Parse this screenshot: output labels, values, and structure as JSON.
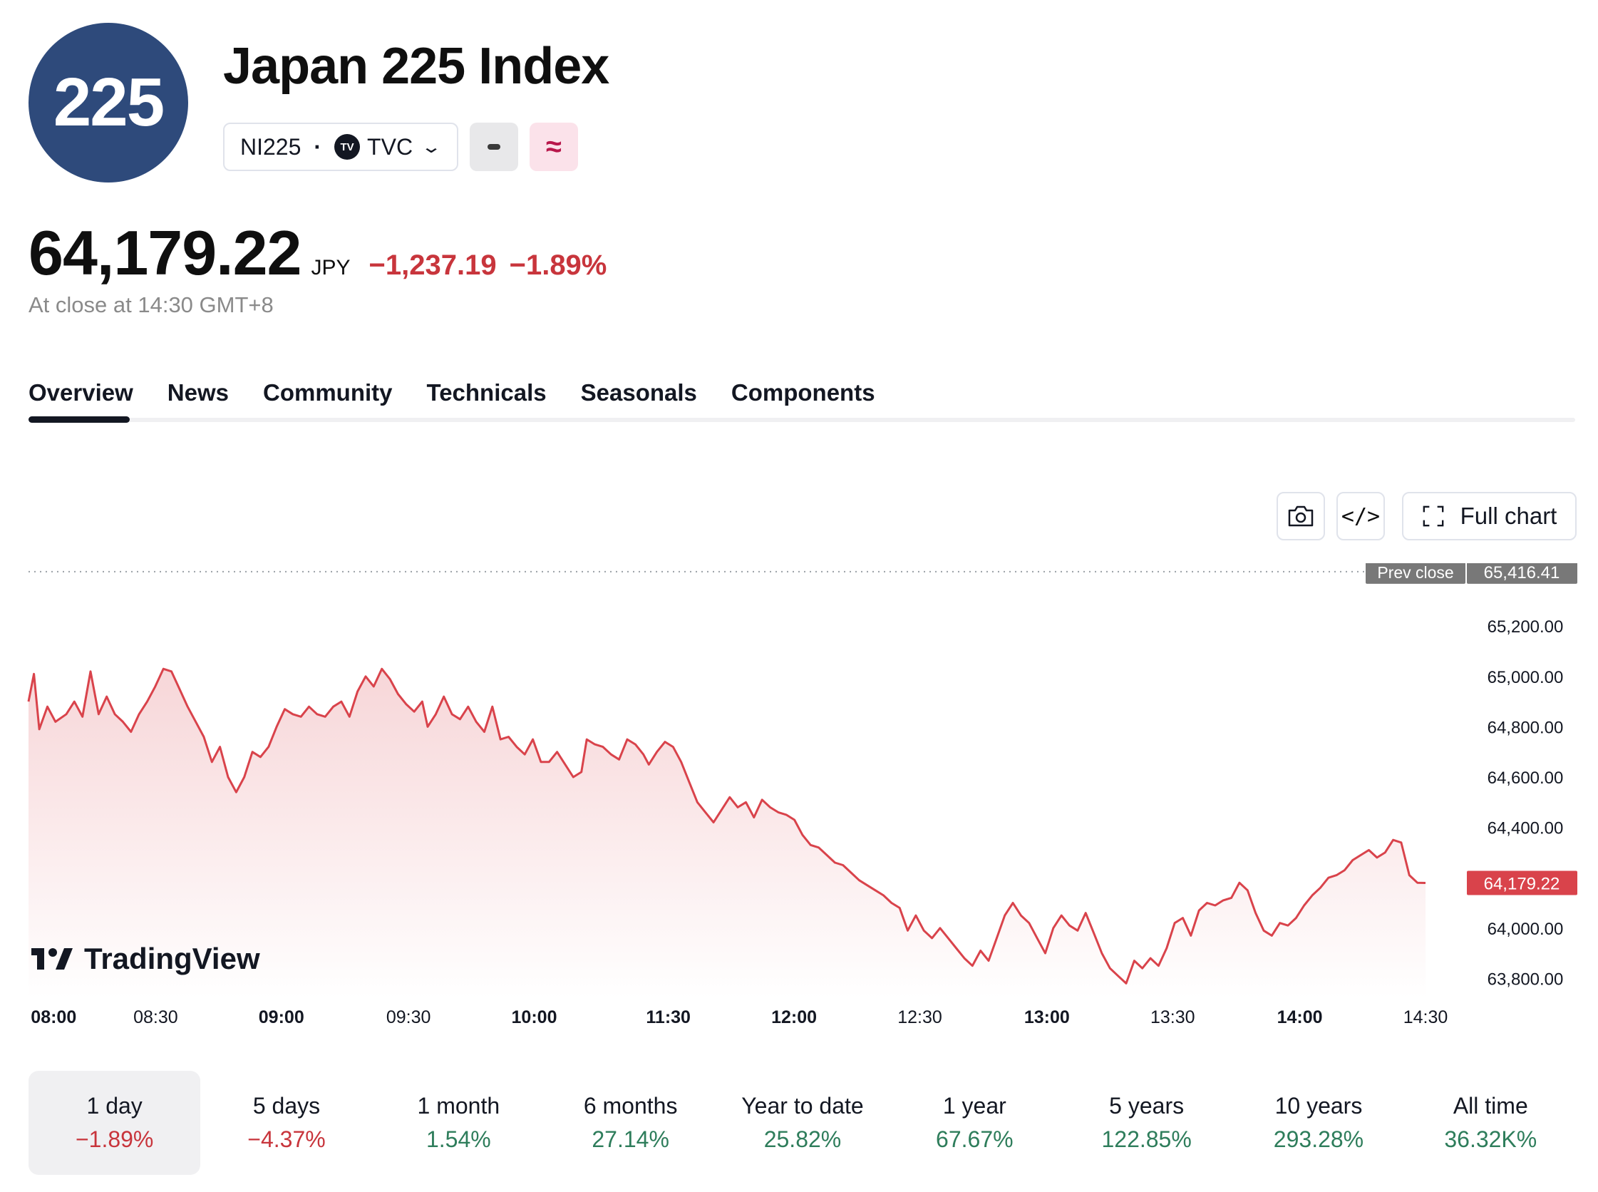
{
  "header": {
    "logo_text": "225",
    "title": "Japan 225 Index",
    "symbol": "NI225",
    "separator": "·",
    "exchange_badge": "TV",
    "exchange": "TVC",
    "approx_icon": "≈"
  },
  "quote": {
    "price": "64,179.22",
    "currency": "JPY",
    "change": "−1,237.19",
    "change_pct": "−1.89%",
    "close_note": "At close at 14:30 GMT+8"
  },
  "tabs": [
    "Overview",
    "News",
    "Community",
    "Technicals",
    "Seasonals",
    "Components"
  ],
  "toolbar": {
    "camera_icon": "camera-icon",
    "embed_label": "</>",
    "full_chart_label": "Full chart"
  },
  "chart_data": {
    "type": "area",
    "watermark": "TradingView",
    "colors": {
      "line": "#d9434b",
      "fill_top": "#f7d6d8",
      "fill_bottom": "#ffffff",
      "last_price_bg": "#d9434b",
      "prev_close_bg": "#787878"
    },
    "ylim": [
      63750,
      65450
    ],
    "y_ticks": [
      65200,
      65000,
      64800,
      64600,
      64400,
      64000,
      63800
    ],
    "y_tick_labels": [
      "65,200.00",
      "65,000.00",
      "64,800.00",
      "64,600.00",
      "64,400.00",
      "64,000.00",
      "63,800.00"
    ],
    "prev_close": {
      "label": "Prev close",
      "value": 65416.41,
      "value_label": "65,416.41"
    },
    "last": {
      "value": 64179.22,
      "value_label": "64,179.22"
    },
    "x_ticks": [
      {
        "label": "08:00",
        "bold": true,
        "pos": 0.018
      },
      {
        "label": "08:30",
        "bold": false,
        "pos": 0.091
      },
      {
        "label": "09:00",
        "bold": true,
        "pos": 0.181
      },
      {
        "label": "09:30",
        "bold": false,
        "pos": 0.272
      },
      {
        "label": "10:00",
        "bold": true,
        "pos": 0.362
      },
      {
        "label": "11:30",
        "bold": true,
        "pos": 0.458
      },
      {
        "label": "12:00",
        "bold": true,
        "pos": 0.548
      },
      {
        "label": "12:30",
        "bold": false,
        "pos": 0.638
      },
      {
        "label": "13:00",
        "bold": true,
        "pos": 0.729
      },
      {
        "label": "13:30",
        "bold": false,
        "pos": 0.819
      },
      {
        "label": "14:00",
        "bold": true,
        "pos": 0.91
      },
      {
        "label": "14:30",
        "bold": false,
        "pos": 1.0
      }
    ],
    "series": [
      {
        "points": [
          [
            0.0,
            64900
          ],
          [
            0.004,
            65010
          ],
          [
            0.008,
            64790
          ],
          [
            0.014,
            64880
          ],
          [
            0.02,
            64820
          ],
          [
            0.028,
            64850
          ],
          [
            0.034,
            64900
          ],
          [
            0.04,
            64840
          ],
          [
            0.046,
            65020
          ],
          [
            0.052,
            64850
          ],
          [
            0.058,
            64920
          ],
          [
            0.064,
            64850
          ],
          [
            0.07,
            64820
          ],
          [
            0.076,
            64780
          ],
          [
            0.082,
            64850
          ],
          [
            0.088,
            64900
          ],
          [
            0.094,
            64960
          ],
          [
            0.1,
            65030
          ],
          [
            0.106,
            65020
          ],
          [
            0.112,
            64950
          ],
          [
            0.118,
            64880
          ],
          [
            0.124,
            64820
          ],
          [
            0.13,
            64760
          ],
          [
            0.136,
            64660
          ],
          [
            0.142,
            64720
          ],
          [
            0.148,
            64600
          ],
          [
            0.154,
            64540
          ],
          [
            0.16,
            64600
          ],
          [
            0.166,
            64700
          ],
          [
            0.172,
            64680
          ],
          [
            0.178,
            64720
          ],
          [
            0.184,
            64800
          ],
          [
            0.19,
            64870
          ],
          [
            0.196,
            64850
          ],
          [
            0.202,
            64840
          ],
          [
            0.208,
            64880
          ],
          [
            0.214,
            64850
          ],
          [
            0.22,
            64840
          ],
          [
            0.226,
            64880
          ],
          [
            0.232,
            64900
          ],
          [
            0.238,
            64840
          ],
          [
            0.244,
            64940
          ],
          [
            0.25,
            65000
          ],
          [
            0.256,
            64960
          ],
          [
            0.262,
            65030
          ],
          [
            0.268,
            64990
          ],
          [
            0.274,
            64930
          ],
          [
            0.28,
            64890
          ],
          [
            0.286,
            64860
          ],
          [
            0.292,
            64900
          ],
          [
            0.296,
            64800
          ],
          [
            0.302,
            64850
          ],
          [
            0.308,
            64920
          ],
          [
            0.314,
            64850
          ],
          [
            0.32,
            64830
          ],
          [
            0.326,
            64880
          ],
          [
            0.332,
            64820
          ],
          [
            0.338,
            64780
          ],
          [
            0.344,
            64880
          ],
          [
            0.35,
            64750
          ],
          [
            0.356,
            64760
          ],
          [
            0.362,
            64720
          ],
          [
            0.368,
            64690
          ],
          [
            0.374,
            64750
          ],
          [
            0.38,
            64660
          ],
          [
            0.386,
            64660
          ],
          [
            0.392,
            64700
          ],
          [
            0.398,
            64650
          ],
          [
            0.404,
            64600
          ],
          [
            0.41,
            64620
          ],
          [
            0.414,
            64750
          ],
          [
            0.42,
            64730
          ],
          [
            0.426,
            64720
          ],
          [
            0.432,
            64690
          ],
          [
            0.438,
            64670
          ],
          [
            0.444,
            64750
          ],
          [
            0.45,
            64730
          ],
          [
            0.456,
            64690
          ],
          [
            0.46,
            64650
          ],
          [
            0.466,
            64700
          ],
          [
            0.472,
            64740
          ],
          [
            0.478,
            64720
          ],
          [
            0.484,
            64660
          ],
          [
            0.49,
            64580
          ],
          [
            0.496,
            64500
          ],
          [
            0.502,
            64460
          ],
          [
            0.508,
            64420
          ],
          [
            0.514,
            64470
          ],
          [
            0.52,
            64520
          ],
          [
            0.526,
            64480
          ],
          [
            0.532,
            64500
          ],
          [
            0.538,
            64440
          ],
          [
            0.544,
            64510
          ],
          [
            0.55,
            64480
          ],
          [
            0.556,
            64460
          ],
          [
            0.562,
            64450
          ],
          [
            0.568,
            64430
          ],
          [
            0.574,
            64370
          ],
          [
            0.58,
            64330
          ],
          [
            0.586,
            64320
          ],
          [
            0.592,
            64290
          ],
          [
            0.598,
            64260
          ],
          [
            0.604,
            64250
          ],
          [
            0.61,
            64220
          ],
          [
            0.616,
            64190
          ],
          [
            0.622,
            64170
          ],
          [
            0.628,
            64150
          ],
          [
            0.634,
            64130
          ],
          [
            0.64,
            64100
          ],
          [
            0.646,
            64080
          ],
          [
            0.652,
            63990
          ],
          [
            0.658,
            64050
          ],
          [
            0.664,
            63990
          ],
          [
            0.67,
            63960
          ],
          [
            0.676,
            64000
          ],
          [
            0.682,
            63960
          ],
          [
            0.688,
            63920
          ],
          [
            0.694,
            63880
          ],
          [
            0.7,
            63850
          ],
          [
            0.706,
            63910
          ],
          [
            0.712,
            63870
          ],
          [
            0.718,
            63960
          ],
          [
            0.724,
            64050
          ],
          [
            0.73,
            64100
          ],
          [
            0.736,
            64050
          ],
          [
            0.742,
            64020
          ],
          [
            0.748,
            63960
          ],
          [
            0.754,
            63900
          ],
          [
            0.76,
            64000
          ],
          [
            0.766,
            64050
          ],
          [
            0.772,
            64010
          ],
          [
            0.778,
            63990
          ],
          [
            0.784,
            64060
          ],
          [
            0.79,
            63980
          ],
          [
            0.796,
            63900
          ],
          [
            0.802,
            63840
          ],
          [
            0.808,
            63810
          ],
          [
            0.814,
            63780
          ],
          [
            0.82,
            63870
          ],
          [
            0.826,
            63840
          ],
          [
            0.832,
            63880
          ],
          [
            0.838,
            63850
          ],
          [
            0.844,
            63920
          ],
          [
            0.85,
            64020
          ],
          [
            0.856,
            64040
          ],
          [
            0.862,
            63970
          ],
          [
            0.868,
            64070
          ],
          [
            0.874,
            64100
          ],
          [
            0.88,
            64090
          ],
          [
            0.886,
            64110
          ],
          [
            0.892,
            64120
          ],
          [
            0.898,
            64180
          ],
          [
            0.904,
            64150
          ],
          [
            0.91,
            64060
          ],
          [
            0.916,
            63990
          ],
          [
            0.922,
            63970
          ],
          [
            0.928,
            64020
          ],
          [
            0.934,
            64010
          ],
          [
            0.94,
            64040
          ],
          [
            0.946,
            64090
          ],
          [
            0.952,
            64130
          ],
          [
            0.958,
            64160
          ],
          [
            0.964,
            64200
          ],
          [
            0.97,
            64210
          ],
          [
            0.976,
            64230
          ],
          [
            0.982,
            64270
          ],
          [
            0.988,
            64290
          ],
          [
            0.994,
            64310
          ],
          [
            1.0,
            64280
          ],
          [
            1.006,
            64300
          ],
          [
            1.012,
            64350
          ],
          [
            1.018,
            64340
          ],
          [
            1.024,
            64210
          ],
          [
            1.03,
            64180
          ],
          [
            1.036,
            64179.22
          ]
        ]
      }
    ]
  },
  "periods": [
    {
      "label": "1 day",
      "value": "−1.89%",
      "trend": "neg",
      "active": true
    },
    {
      "label": "5 days",
      "value": "−4.37%",
      "trend": "neg",
      "active": false
    },
    {
      "label": "1 month",
      "value": "1.54%",
      "trend": "pos",
      "active": false
    },
    {
      "label": "6 months",
      "value": "27.14%",
      "trend": "pos",
      "active": false
    },
    {
      "label": "Year to date",
      "value": "25.82%",
      "trend": "pos",
      "active": false
    },
    {
      "label": "1 year",
      "value": "67.67%",
      "trend": "pos",
      "active": false
    },
    {
      "label": "5 years",
      "value": "122.85%",
      "trend": "pos",
      "active": false
    },
    {
      "label": "10 years",
      "value": "293.28%",
      "trend": "pos",
      "active": false
    },
    {
      "label": "All time",
      "value": "36.32K%",
      "trend": "pos",
      "active": false
    }
  ]
}
